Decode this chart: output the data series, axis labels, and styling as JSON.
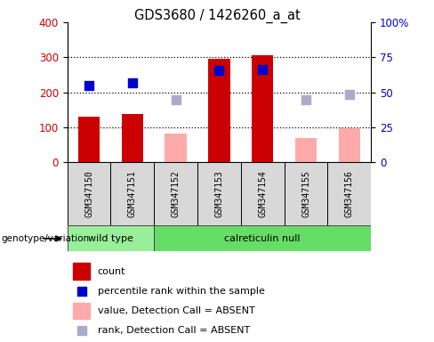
{
  "title": "GDS3680 / 1426260_a_at",
  "samples": [
    "GSM347150",
    "GSM347151",
    "GSM347152",
    "GSM347153",
    "GSM347154",
    "GSM347155",
    "GSM347156"
  ],
  "count_values": [
    130,
    137,
    null,
    295,
    307,
    null,
    null
  ],
  "count_absent_values": [
    null,
    null,
    83,
    null,
    null,
    70,
    97
  ],
  "rank_values": [
    220,
    228,
    null,
    262,
    265,
    null,
    null
  ],
  "rank_absent_values": [
    null,
    null,
    178,
    null,
    null,
    178,
    193
  ],
  "left_ylim": [
    0,
    400
  ],
  "right_ylim": [
    0,
    100
  ],
  "left_yticks": [
    0,
    100,
    200,
    300,
    400
  ],
  "right_yticks": [
    0,
    25,
    50,
    75,
    100
  ],
  "right_yticklabels": [
    "0",
    "25",
    "50",
    "75",
    "100%"
  ],
  "color_count": "#cc0000",
  "color_rank": "#0000cc",
  "color_count_absent": "#ffaaaa",
  "color_rank_absent": "#aaaacc",
  "color_wildtype_bg": "#99ee99",
  "color_calreticulin_bg": "#66dd66",
  "color_sample_bg": "#d8d8d8",
  "bar_width": 0.5,
  "dot_size": 60,
  "legend_items": [
    {
      "label": "count",
      "color": "#cc0000",
      "type": "bar"
    },
    {
      "label": "percentile rank within the sample",
      "color": "#0000cc",
      "type": "dot"
    },
    {
      "label": "value, Detection Call = ABSENT",
      "color": "#ffaaaa",
      "type": "bar"
    },
    {
      "label": "rank, Detection Call = ABSENT",
      "color": "#aaaacc",
      "type": "dot"
    }
  ],
  "grid_lines": [
    100,
    200,
    300
  ],
  "wild_type_count": 2,
  "calreticulin_null_count": 5
}
